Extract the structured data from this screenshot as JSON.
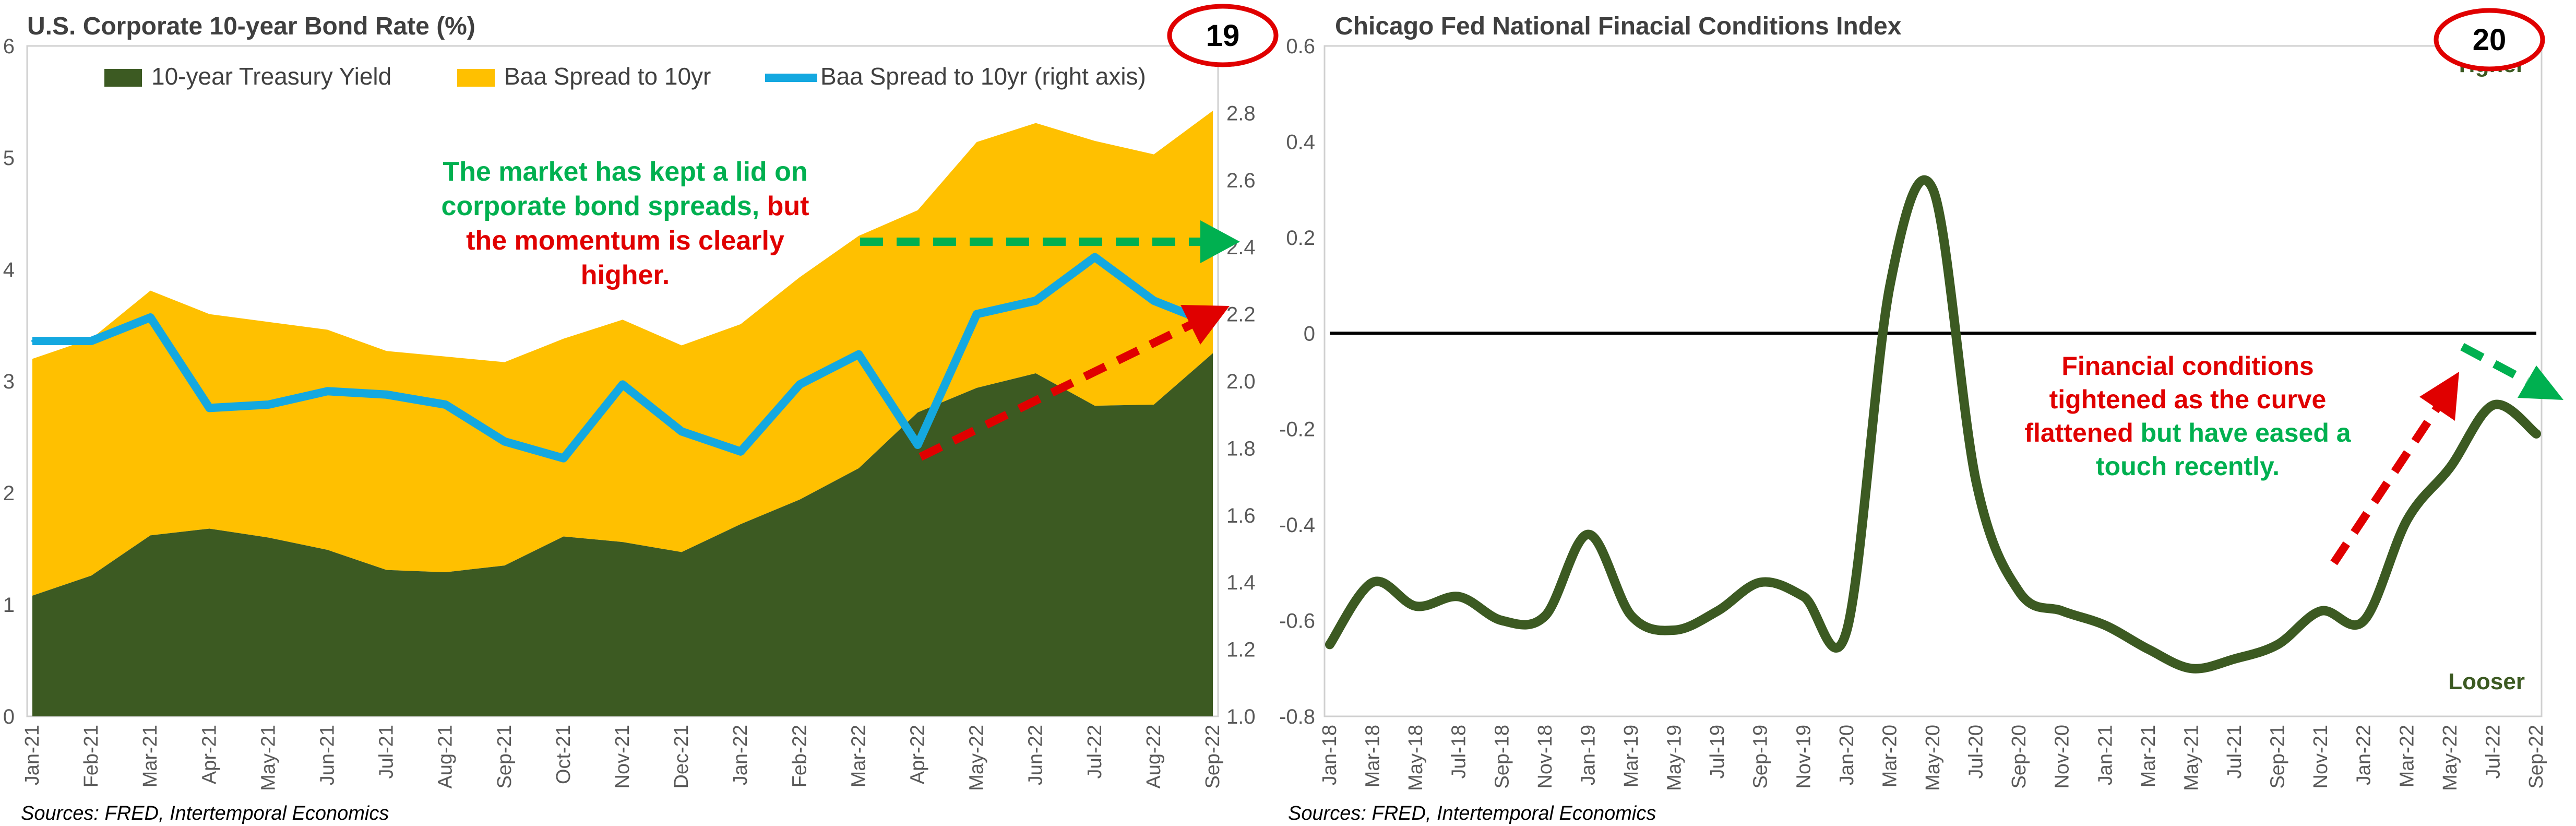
{
  "charts": [
    {
      "title": "U.S. Corporate 10-year Bond Rate (%)",
      "badge": "19",
      "legend": [
        "10-year Treasury Yield",
        "Baa Spread to 10yr",
        "Baa Spread to 10yr (right axis)"
      ],
      "annotation": {
        "line1": "The market has kept a lid on",
        "line2a": "corporate bond spreads, ",
        "line2b": "but",
        "line3": "the momentum is clearly",
        "line4": "higher."
      },
      "source": "Sources: FRED, Intertemporal Economics"
    },
    {
      "title": "Chicago Fed National Finacial Conditions Index",
      "badge": "20",
      "label_top": "Tigher",
      "label_bottom": "Looser",
      "annotation": {
        "line1": "Financial conditions",
        "line2": "tightened as the curve",
        "line3a": "flattened ",
        "line3b": "but have eased a",
        "line4": "touch recently."
      },
      "source": "Sources: FRED, Intertemporal Economics"
    }
  ],
  "colors": {
    "treasury": "#3c5a22",
    "spread_area": "#ffc000",
    "spread_line": "#14a8e0",
    "nfci_line": "#3c5a22",
    "green_text": "#00b050",
    "red_text": "#e00000",
    "badge_ring": "#e00000"
  },
  "chart_data": [
    {
      "type": "area",
      "title": "U.S. Corporate 10-year Bond Rate (%)",
      "x": [
        "Jan-21",
        "Feb-21",
        "Mar-21",
        "Apr-21",
        "May-21",
        "Jun-21",
        "Jul-21",
        "Aug-21",
        "Sep-21",
        "Oct-21",
        "Nov-21",
        "Dec-21",
        "Jan-22",
        "Feb-22",
        "Mar-22",
        "Apr-22",
        "May-22",
        "Jun-22",
        "Jul-22",
        "Aug-22",
        "Sep-22"
      ],
      "ylim": [
        0,
        6
      ],
      "y_ticks": [
        "0",
        "1",
        "2",
        "3",
        "4",
        "5",
        "6"
      ],
      "y2lim": [
        1.0,
        3.0
      ],
      "y2_ticks": [
        "1.0",
        "1.2",
        "1.4",
        "1.6",
        "1.8",
        "2.0",
        "2.2",
        "2.4",
        "2.6",
        "2.8"
      ],
      "series": [
        {
          "name": "10-year Treasury Yield",
          "values": [
            1.08,
            1.26,
            1.62,
            1.68,
            1.6,
            1.49,
            1.31,
            1.29,
            1.35,
            1.61,
            1.56,
            1.47,
            1.72,
            1.94,
            2.22,
            2.72,
            2.94,
            3.07,
            2.78,
            2.79,
            3.25
          ]
        },
        {
          "name": "Baa Spread to 10yr",
          "values": [
            2.12,
            2.12,
            2.19,
            1.92,
            1.93,
            1.97,
            1.96,
            1.93,
            1.82,
            1.77,
            1.99,
            1.85,
            1.79,
            1.99,
            2.08,
            1.81,
            2.2,
            2.24,
            2.37,
            2.24,
            2.17
          ]
        },
        {
          "name": "Baa Spread to 10yr (right axis)",
          "values": [
            2.12,
            2.12,
            2.19,
            1.92,
            1.93,
            1.97,
            1.96,
            1.93,
            1.82,
            1.77,
            1.99,
            1.85,
            1.79,
            1.99,
            2.08,
            1.81,
            2.2,
            2.24,
            2.37,
            2.24,
            2.17
          ]
        }
      ],
      "legend": "top"
    },
    {
      "type": "line",
      "title": "Chicago Fed National Finacial Conditions Index",
      "x": [
        "Jan-18",
        "Mar-18",
        "May-18",
        "Jul-18",
        "Sep-18",
        "Nov-18",
        "Jan-19",
        "Mar-19",
        "May-19",
        "Jul-19",
        "Sep-19",
        "Nov-19",
        "Jan-20",
        "Mar-20",
        "May-20",
        "Jul-20",
        "Sep-20",
        "Nov-20",
        "Jan-21",
        "Mar-21",
        "May-21",
        "Jul-21",
        "Sep-21",
        "Nov-21",
        "Jan-22",
        "Mar-22",
        "May-22",
        "Jul-22",
        "Sep-22"
      ],
      "ylim": [
        -0.8,
        0.6
      ],
      "y_ticks": [
        "-0.8",
        "-0.6",
        "-0.4",
        "-0.2",
        "0",
        "0.2",
        "0.4",
        "0.6"
      ],
      "series": [
        {
          "name": "NFCI",
          "values": [
            -0.65,
            -0.52,
            -0.57,
            -0.55,
            -0.6,
            -0.59,
            -0.42,
            -0.59,
            -0.62,
            -0.58,
            -0.52,
            -0.55,
            -0.62,
            0.1,
            0.3,
            -0.31,
            -0.54,
            -0.58,
            -0.61,
            -0.66,
            -0.7,
            -0.68,
            -0.65,
            -0.58,
            -0.6,
            -0.39,
            -0.28,
            -0.15,
            -0.21
          ]
        }
      ]
    }
  ]
}
